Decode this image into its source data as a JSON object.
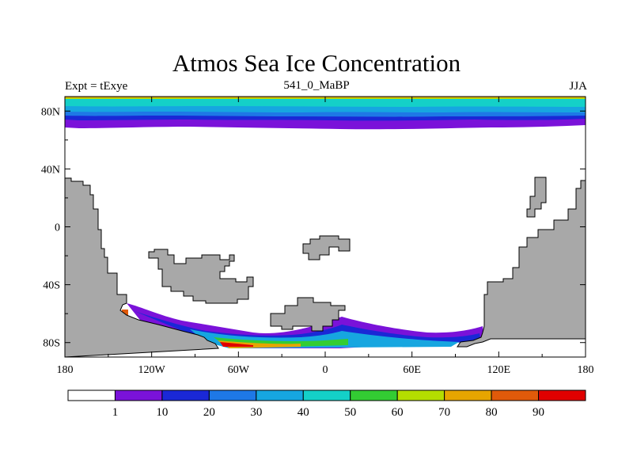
{
  "title": "Atmos Sea Ice Concentration",
  "subtitle_left": "Expt = tExye",
  "subtitle_center": "541_0_MaBP",
  "subtitle_right": "JJA",
  "lat_ticks": [
    {
      "label": "80N",
      "value": 80
    },
    {
      "label": "40N",
      "value": 40
    },
    {
      "label": "0",
      "value": 0
    },
    {
      "label": "40S",
      "value": -40
    },
    {
      "label": "80S",
      "value": -80
    }
  ],
  "lon_ticks": [
    {
      "label": "180",
      "value": -180
    },
    {
      "label": "120W",
      "value": -120
    },
    {
      "label": "60W",
      "value": -60
    },
    {
      "label": "0",
      "value": 0
    },
    {
      "label": "60E",
      "value": 60
    },
    {
      "label": "120E",
      "value": 120
    },
    {
      "label": "180",
      "value": 180
    }
  ],
  "colorbar": {
    "labels": [
      "1",
      "10",
      "20",
      "30",
      "40",
      "50",
      "60",
      "70",
      "80",
      "90"
    ],
    "colors": [
      "#ffffff",
      "#7a12d9",
      "#1a28d6",
      "#1e78e6",
      "#16a6e0",
      "#14d0c8",
      "#33cc33",
      "#b4dd00",
      "#e6a500",
      "#e05a0a",
      "#e00000"
    ]
  },
  "colors": {
    "land": "#a8a8a8",
    "land_stroke": "#000000",
    "frame": "#000000"
  }
}
